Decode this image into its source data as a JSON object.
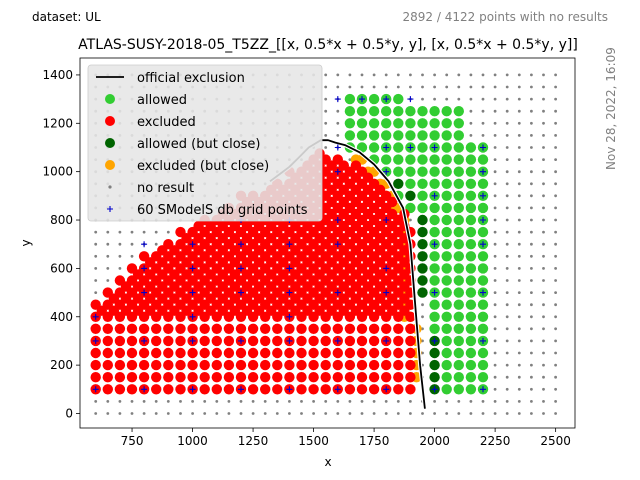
{
  "header": {
    "dataset_label": "dataset: UL",
    "points_summary": "2892 / 4122 points with no results",
    "date_stamp": "Nov 28, 2022, 16:09"
  },
  "chart_data": {
    "type": "scatter",
    "title": "ATLAS-SUSY-2018-05_T5ZZ_[[x, 0.5*x + 0.5*y, y], [x, 0.5*x + 0.5*y, y]]",
    "xlabel": "x",
    "ylabel": "y",
    "xlim": [
      535,
      2580
    ],
    "ylim": [
      -60,
      1470
    ],
    "xticks": [
      750,
      1000,
      1250,
      1500,
      1750,
      2000,
      2250,
      2500
    ],
    "yticks": [
      0,
      200,
      400,
      600,
      800,
      1000,
      1200,
      1400
    ],
    "legend_position": "top-left",
    "colors": {
      "allowed": "#32cd32",
      "excluded": "#ff0000",
      "allowed_close": "#006400",
      "excluded_close": "#ffa500",
      "no_result": "#808080",
      "db_grid": "#0000cc",
      "exclusion_line": "#000000"
    },
    "legend": [
      {
        "label": "official exclusion",
        "marker": "line",
        "color": "#000000"
      },
      {
        "label": "allowed",
        "marker": "dot",
        "color": "#32cd32"
      },
      {
        "label": "excluded",
        "marker": "dot",
        "color": "#ff0000"
      },
      {
        "label": "allowed (but close)",
        "marker": "dot",
        "color": "#006400"
      },
      {
        "label": "excluded (but close)",
        "marker": "dot",
        "color": "#ffa500"
      },
      {
        "label": "no result",
        "marker": "small",
        "color": "#808080"
      },
      {
        "label": "60 SModelS db grid points",
        "marker": "plus",
        "color": "#0000cc"
      }
    ],
    "no_result_grid": {
      "x_start": 600,
      "x_end": 2500,
      "x_step": 50,
      "y_start": 0,
      "y_end": 1400,
      "y_step": 50
    },
    "excluded_region_upper_bound": {
      "x": [
        600,
        700,
        800,
        900,
        1000,
        1100,
        1200,
        1300,
        1400,
        1500,
        1600,
        1700,
        1800,
        1900
      ],
      "y_max": [
        450,
        550,
        650,
        720,
        790,
        840,
        900,
        930,
        1000,
        1080,
        1050,
        1000,
        900,
        750
      ]
    },
    "excluded_region_x_range": [
      600,
      1900
    ],
    "excluded_region_y_min": 100,
    "allowed_region": {
      "x_range": [
        1650,
        2200
      ],
      "y_range": [
        100,
        1300
      ]
    },
    "official_exclusion_curve": {
      "x": [
        1960,
        1940,
        1920,
        1900,
        1870,
        1810,
        1750,
        1690,
        1630,
        1590,
        1560,
        1530,
        1480,
        1440,
        1400,
        1360,
        1320
      ],
      "y": [
        20,
        200,
        450,
        700,
        850,
        960,
        1030,
        1080,
        1110,
        1120,
        1130,
        1130,
        1100,
        1060,
        1020,
        990,
        960
      ]
    },
    "db_grid_points": {
      "x": [
        600,
        600,
        600,
        800,
        800,
        800,
        800,
        800,
        1000,
        1000,
        1000,
        1000,
        1000,
        1000,
        1200,
        1200,
        1200,
        1200,
        1200,
        1200,
        1400,
        1400,
        1400,
        1400,
        1400,
        1400,
        1400,
        1600,
        1600,
        1600,
        1600,
        1600,
        1600,
        1600,
        1600,
        1700,
        1800,
        1800,
        1800,
        1800,
        1800,
        1800,
        1800,
        1800,
        1900,
        1900,
        2000,
        2000,
        2000,
        2000,
        2000,
        2000,
        2200,
        2200,
        2200,
        2200,
        2200,
        2200,
        2200,
        2200
      ],
      "y": [
        100,
        300,
        400,
        100,
        300,
        500,
        600,
        700,
        100,
        300,
        400,
        500,
        600,
        700,
        100,
        300,
        500,
        600,
        700,
        800,
        100,
        300,
        400,
        500,
        600,
        700,
        800,
        100,
        300,
        500,
        700,
        800,
        1000,
        1100,
        1300,
        1300,
        100,
        300,
        500,
        600,
        800,
        1000,
        1100,
        1300,
        1100,
        1300,
        100,
        300,
        500,
        700,
        900,
        1100,
        100,
        300,
        500,
        700,
        800,
        900,
        1000,
        1100
      ]
    }
  }
}
